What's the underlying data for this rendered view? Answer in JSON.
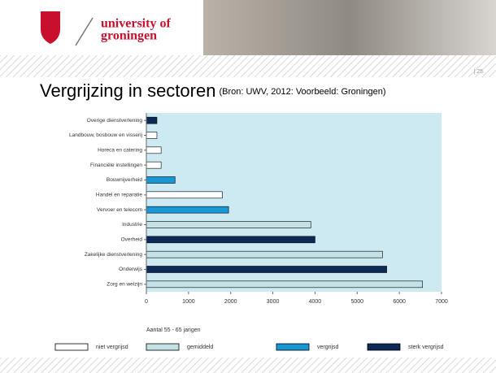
{
  "header": {
    "line1": "university of",
    "line2": "groningen",
    "page_number": "| 25"
  },
  "chart_data": {
    "type": "bar",
    "orientation": "horizontal",
    "title": "Vergrijzing in sectoren",
    "subtitle": "(Bron: UWV, 2012: Voorbeeld: Groningen)",
    "xlabel": "Aantal 55 - 65 jarigen",
    "categories": [
      "Overige dienstverlening",
      "Landbouw, bosbouw en visserij",
      "Horeca en catering",
      "Financiële instellingen",
      "Bouwnijverheid",
      "Handel en reparatie",
      "Vervoer en telecom",
      "Industrie",
      "Overheid",
      "Zakelijke dienstverlening",
      "Onderwijs",
      "Zorg en welzijn"
    ],
    "series": [
      {
        "name": "niet vergrijsd",
        "color": "#ffffff",
        "values": [
          null,
          250,
          350,
          350,
          null,
          1800,
          null,
          null,
          null,
          null,
          null,
          null
        ]
      },
      {
        "name": "gemiddeld",
        "color": "#c4e2e6",
        "values": [
          null,
          null,
          null,
          null,
          null,
          null,
          null,
          3900,
          null,
          5600,
          null,
          6550
        ]
      },
      {
        "name": "vergrijsd",
        "color": "#1997d4",
        "values": [
          null,
          null,
          null,
          null,
          680,
          null,
          1950,
          null,
          null,
          null,
          null,
          null
        ]
      },
      {
        "name": "sterk vergrijsd",
        "color": "#0b2a56",
        "values": [
          250,
          null,
          null,
          null,
          null,
          null,
          null,
          null,
          4000,
          null,
          5700,
          null
        ]
      }
    ],
    "xlim": [
      0,
      7000
    ],
    "xticks": [
      0,
      1000,
      2000,
      3000,
      4000,
      5000,
      6000,
      7000
    ],
    "plot_background": "#cdeaf3",
    "bar_edge_color": "#000000"
  }
}
